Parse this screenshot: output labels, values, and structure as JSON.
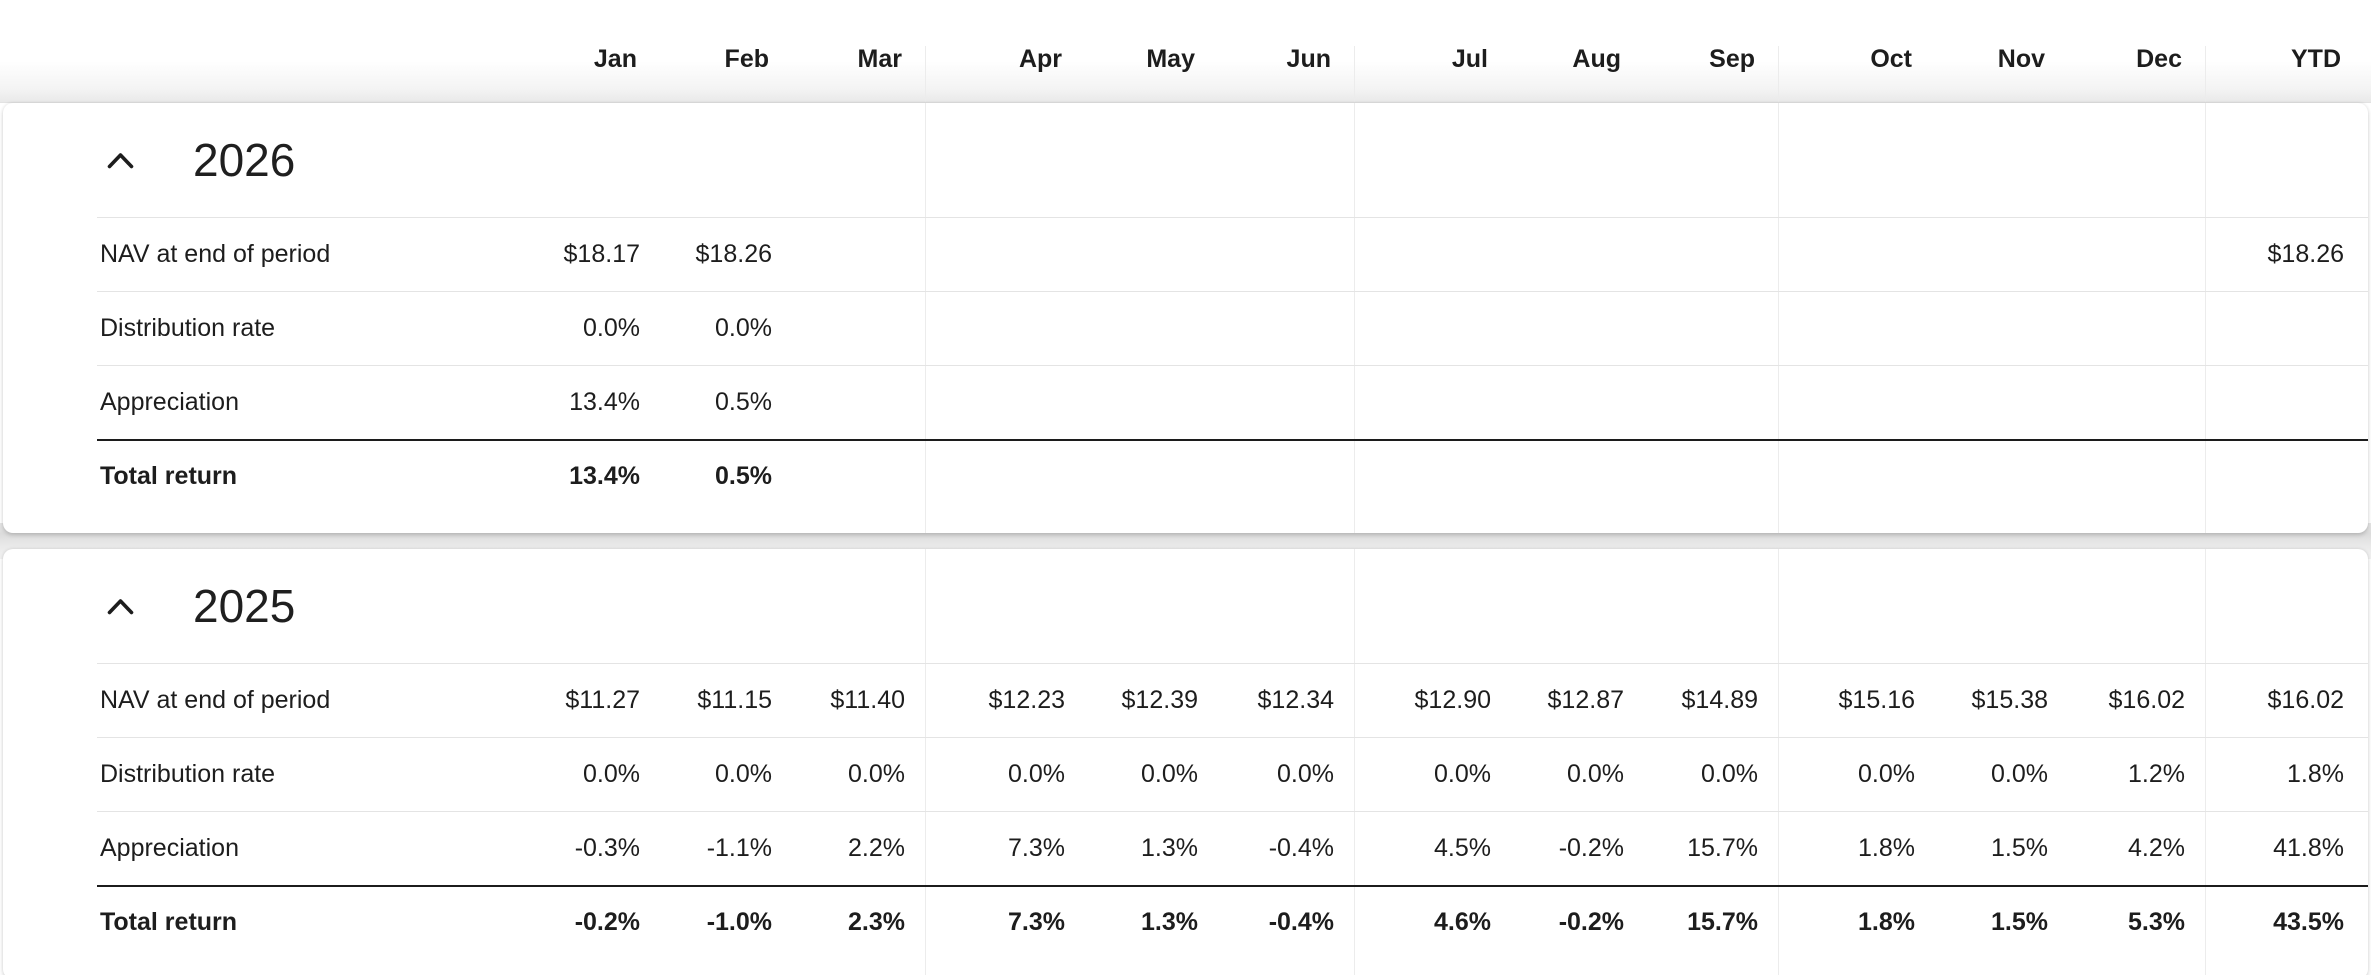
{
  "header": {
    "columns": [
      "Jan",
      "Feb",
      "Mar",
      "Apr",
      "May",
      "Jun",
      "Jul",
      "Aug",
      "Sep",
      "Oct",
      "Nov",
      "Dec",
      "YTD"
    ]
  },
  "sections": [
    {
      "year": "2026",
      "collapse_icon": "chevron-up",
      "rows": [
        {
          "label": "NAV at end of period",
          "total": false,
          "values": [
            "$18.17",
            "$18.26",
            "",
            "",
            "",
            "",
            "",
            "",
            "",
            "",
            "",
            "",
            "$18.26"
          ]
        },
        {
          "label": "Distribution rate",
          "total": false,
          "values": [
            "0.0%",
            "0.0%",
            "",
            "",
            "",
            "",
            "",
            "",
            "",
            "",
            "",
            "",
            ""
          ]
        },
        {
          "label": "Appreciation",
          "total": false,
          "values": [
            "13.4%",
            "0.5%",
            "",
            "",
            "",
            "",
            "",
            "",
            "",
            "",
            "",
            "",
            ""
          ]
        },
        {
          "label": "Total return",
          "total": true,
          "values": [
            "13.4%",
            "0.5%",
            "",
            "",
            "",
            "",
            "",
            "",
            "",
            "",
            "",
            "",
            ""
          ]
        }
      ]
    },
    {
      "year": "2025",
      "collapse_icon": "chevron-up",
      "rows": [
        {
          "label": "NAV at end of period",
          "total": false,
          "values": [
            "$11.27",
            "$11.15",
            "$11.40",
            "$12.23",
            "$12.39",
            "$12.34",
            "$12.90",
            "$12.87",
            "$14.89",
            "$15.16",
            "$15.38",
            "$16.02",
            "$16.02"
          ]
        },
        {
          "label": "Distribution rate",
          "total": false,
          "values": [
            "0.0%",
            "0.0%",
            "0.0%",
            "0.0%",
            "0.0%",
            "0.0%",
            "0.0%",
            "0.0%",
            "0.0%",
            "0.0%",
            "0.0%",
            "1.2%",
            "1.8%"
          ]
        },
        {
          "label": "Appreciation",
          "total": false,
          "values": [
            "-0.3%",
            "-1.1%",
            "2.2%",
            "7.3%",
            "1.3%",
            "-0.4%",
            "4.5%",
            "-0.2%",
            "15.7%",
            "1.8%",
            "1.5%",
            "4.2%",
            "41.8%"
          ]
        },
        {
          "label": "Total return",
          "total": true,
          "values": [
            "-0.2%",
            "-1.0%",
            "2.3%",
            "7.3%",
            "1.3%",
            "-0.4%",
            "4.6%",
            "-0.2%",
            "15.7%",
            "1.8%",
            "1.5%",
            "5.3%",
            "43.5%"
          ]
        }
      ]
    }
  ],
  "colors": {
    "text": "#1d1d1d",
    "row_separator": "#e4e4e4",
    "total_rule": "#1c1c1c",
    "quarter_divider": "#ececec",
    "card_gap": "#dcdcdc",
    "background": "#ffffff"
  }
}
